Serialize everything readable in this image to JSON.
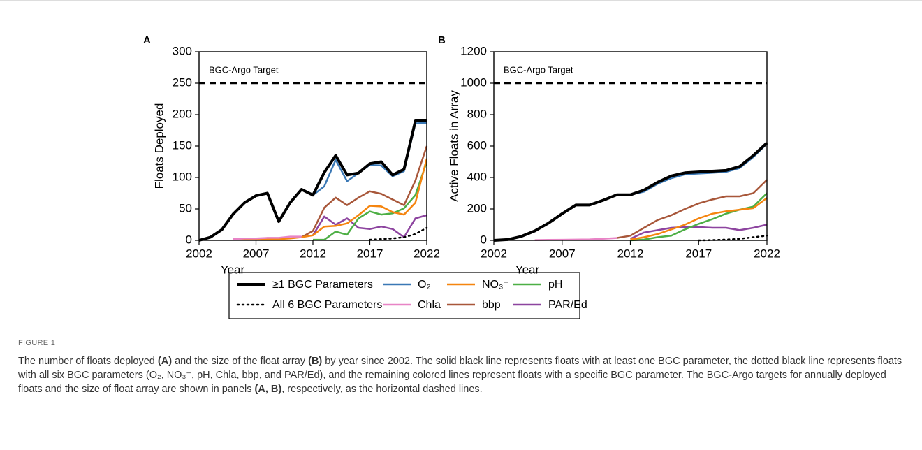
{
  "chart_data": [
    {
      "type": "line",
      "panel": "A",
      "ylabel": "Floats Deployed",
      "xlabel": "Year",
      "x": [
        2002,
        2003,
        2004,
        2005,
        2006,
        2007,
        2008,
        2009,
        2010,
        2011,
        2012,
        2013,
        2014,
        2015,
        2016,
        2017,
        2018,
        2019,
        2020,
        2021,
        2022
      ],
      "xlim": [
        2002,
        2022
      ],
      "xticks": [
        2002,
        2007,
        2012,
        2017,
        2022
      ],
      "ylim": [
        0,
        300
      ],
      "yticks": [
        0,
        50,
        100,
        150,
        200,
        250,
        300
      ],
      "target": {
        "label": "BGC-Argo Target",
        "value": 250
      },
      "series": [
        {
          "name": "≥1 BGC Parameters",
          "color": "#000000",
          "width": 4,
          "values": [
            0,
            5,
            17,
            42,
            60,
            71,
            75,
            30,
            60,
            81,
            72,
            108,
            135,
            104,
            107,
            122,
            125,
            104,
            113,
            190,
            190
          ]
        },
        {
          "name": "All 6 BGC Parameters",
          "color": "#000000",
          "width": 2.5,
          "dash": "dotted",
          "values": [
            null,
            null,
            null,
            null,
            null,
            null,
            null,
            null,
            null,
            null,
            null,
            null,
            null,
            null,
            null,
            1,
            2,
            3,
            5,
            10,
            20
          ]
        },
        {
          "name": "O₂",
          "color": "#3a78b5",
          "width": 2.5,
          "values": [
            0,
            5,
            17,
            42,
            60,
            71,
            75,
            30,
            60,
            81,
            72,
            86,
            128,
            94,
            107,
            120,
            119,
            102,
            110,
            186,
            187
          ]
        },
        {
          "name": "Chla",
          "color": "#e884c6",
          "width": 2.5,
          "values": [
            null,
            null,
            null,
            2,
            3,
            3,
            4,
            4,
            6,
            6,
            null,
            null,
            null,
            null,
            null,
            null,
            null,
            null,
            null,
            null,
            null
          ]
        },
        {
          "name": "NO₃⁻",
          "color": "#f5850f",
          "width": 2.5,
          "values": [
            null,
            null,
            null,
            1,
            2,
            2,
            2,
            2,
            3,
            5,
            8,
            22,
            23,
            27,
            40,
            55,
            54,
            45,
            41,
            60,
            130
          ]
        },
        {
          "name": "bbp",
          "color": "#a8573a",
          "width": 2.5,
          "values": [
            null,
            null,
            null,
            null,
            null,
            null,
            null,
            null,
            null,
            5,
            15,
            52,
            68,
            56,
            68,
            78,
            74,
            65,
            56,
            95,
            150
          ]
        },
        {
          "name": "pH",
          "color": "#4daf45",
          "width": 2.5,
          "values": [
            null,
            null,
            null,
            null,
            null,
            null,
            null,
            null,
            null,
            null,
            1,
            1,
            14,
            9,
            35,
            46,
            41,
            43,
            51,
            72,
            125
          ]
        },
        {
          "name": "PAR/Ed",
          "color": "#8d449f",
          "width": 2.5,
          "values": [
            null,
            null,
            null,
            null,
            null,
            null,
            null,
            null,
            null,
            null,
            8,
            38,
            25,
            35,
            20,
            18,
            22,
            18,
            5,
            35,
            40
          ]
        }
      ]
    },
    {
      "type": "line",
      "panel": "B",
      "ylabel": "Active Floats in Array",
      "xlabel": "Year",
      "x": [
        2002,
        2003,
        2004,
        2005,
        2006,
        2007,
        2008,
        2009,
        2010,
        2011,
        2012,
        2013,
        2014,
        2015,
        2016,
        2017,
        2018,
        2019,
        2020,
        2021,
        2022
      ],
      "xlim": [
        2002,
        2022
      ],
      "xticks": [
        2002,
        2007,
        2012,
        2017,
        2022
      ],
      "ylim": [
        0,
        1200
      ],
      "yticks": [
        0,
        200,
        400,
        600,
        800,
        1000,
        1200
      ],
      "target": {
        "label": "BGC-Argo Target",
        "value": 1000
      },
      "series": [
        {
          "color": "#000000",
          "width": 4,
          "values": [
            0,
            5,
            25,
            60,
            110,
            170,
            225,
            225,
            255,
            290,
            290,
            320,
            370,
            410,
            430,
            435,
            440,
            445,
            470,
            540,
            620
          ]
        },
        {
          "color": "#000000",
          "width": 2.5,
          "dash": "dotted",
          "values": [
            null,
            null,
            null,
            null,
            null,
            null,
            null,
            null,
            null,
            null,
            null,
            null,
            null,
            null,
            null,
            0,
            2,
            5,
            10,
            20,
            30
          ]
        },
        {
          "color": "#3a78b5",
          "width": 2.5,
          "values": [
            0,
            5,
            25,
            60,
            110,
            170,
            225,
            225,
            255,
            290,
            290,
            310,
            360,
            395,
            420,
            425,
            430,
            435,
            460,
            530,
            615
          ]
        },
        {
          "color": "#e884c6",
          "width": 2.5,
          "values": [
            null,
            null,
            null,
            2,
            3,
            4,
            5,
            6,
            10,
            15,
            null,
            null,
            null,
            null,
            null,
            null,
            null,
            null,
            null,
            null,
            null
          ]
        },
        {
          "color": "#f5850f",
          "width": 2.5,
          "values": [
            null,
            null,
            null,
            null,
            null,
            null,
            null,
            null,
            null,
            null,
            5,
            20,
            40,
            70,
            100,
            140,
            170,
            185,
            195,
            205,
            270
          ]
        },
        {
          "color": "#a8573a",
          "width": 2.5,
          "values": [
            null,
            null,
            null,
            null,
            null,
            null,
            null,
            null,
            null,
            15,
            30,
            80,
            130,
            160,
            200,
            235,
            260,
            280,
            280,
            300,
            385
          ]
        },
        {
          "color": "#4daf45",
          "width": 2.5,
          "values": [
            null,
            null,
            null,
            null,
            null,
            null,
            null,
            null,
            null,
            null,
            0,
            5,
            20,
            30,
            70,
            105,
            135,
            170,
            195,
            215,
            300
          ]
        },
        {
          "color": "#8d449f",
          "width": 2.5,
          "values": [
            null,
            null,
            null,
            null,
            null,
            null,
            null,
            null,
            null,
            null,
            10,
            50,
            65,
            80,
            85,
            85,
            80,
            80,
            65,
            80,
            100
          ]
        }
      ]
    }
  ],
  "caption": {
    "label": "FIGURE 1",
    "parts": [
      "The number of floats deployed ",
      "(A)",
      " and the size of the float array ",
      "(B)",
      " by year since 2002. The solid black line represents floats with at least one BGC parameter, the dotted black line represents floats with all six BGC parameters (O₂, NO₃⁻, pH, Chla, bbp, and PAR/Ed), and the remaining colored lines represent floats with a specific BGC parameter. The BGC-Argo targets for annually deployed floats and the size of float array are shown in panels ",
      "(A, B)",
      ", respectively, as the horizontal dashed lines."
    ]
  }
}
